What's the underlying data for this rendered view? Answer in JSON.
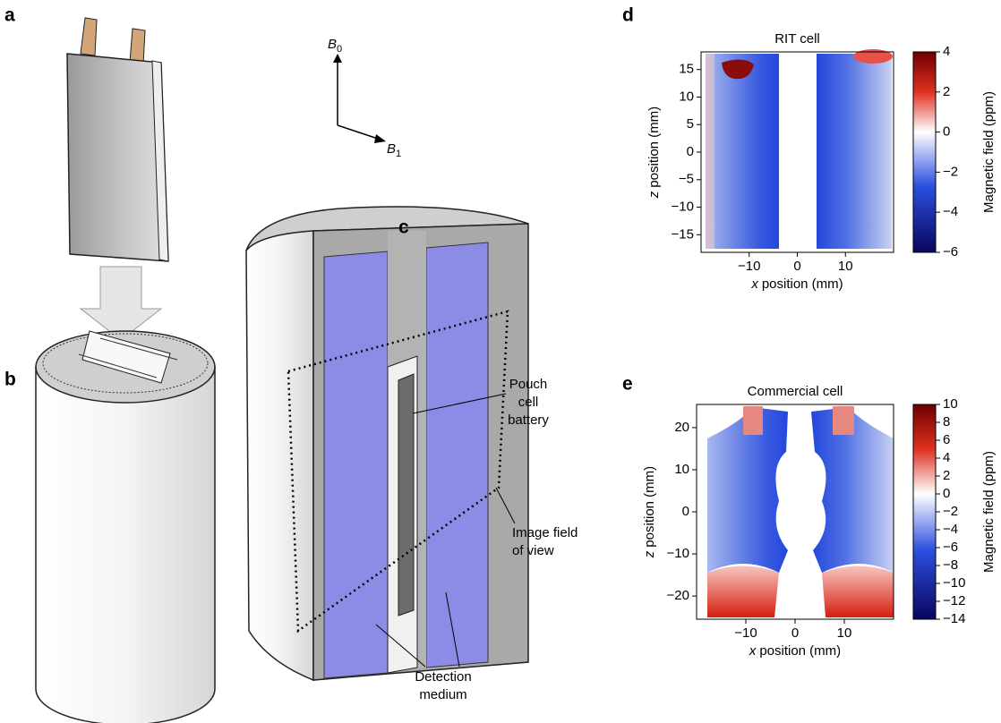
{
  "panel_letters": [
    "a",
    "b",
    "c",
    "d",
    "e"
  ],
  "field_axes": {
    "b0": {
      "symbol": "B",
      "subscript": "0"
    },
    "b1": {
      "symbol": "B",
      "subscript": "1"
    }
  },
  "annotations": {
    "pouch": [
      "Pouch",
      "cell",
      "battery"
    ],
    "field_of_view": [
      "Image field",
      "of view"
    ],
    "medium": [
      "Detection",
      "medium"
    ]
  },
  "chart_data": [
    {
      "type": "heatmap",
      "title": "RIT cell",
      "xlabel_var": "x",
      "xlabel": "position (mm)",
      "ylabel_var": "z",
      "ylabel": "position (mm)",
      "xlim": [
        -20,
        20
      ],
      "xticks": [
        {
          "value": -10,
          "label": "−10"
        },
        0,
        10
      ],
      "ylim": [
        -18.2,
        18.2
      ],
      "yticks": [
        {
          "value": -15,
          "label": "−15"
        },
        {
          "value": -10,
          "label": "−10"
        },
        {
          "value": -5,
          "label": "−5"
        },
        0,
        5,
        10,
        15
      ],
      "colorbar_label": "Magnetic field (ppm)",
      "clim": [
        -6,
        4
      ],
      "cticks": [
        {
          "value": -6,
          "label": "−6"
        },
        {
          "value": -4,
          "label": "−4"
        },
        {
          "value": -2,
          "label": "−2"
        },
        0,
        2,
        4
      ],
      "colormap": [
        "#08065e",
        "#2b4fe0",
        "#ffffff",
        "#e03020",
        "#6e0000"
      ]
    },
    {
      "type": "heatmap",
      "title": "Commercial cell",
      "xlabel_var": "x",
      "xlabel": "position (mm)",
      "ylabel_var": "z",
      "ylabel": "position (mm)",
      "xlim": [
        -20,
        20
      ],
      "xticks": [
        {
          "value": -10,
          "label": "−10"
        },
        0,
        10
      ],
      "ylim": [
        -25.5,
        25.5
      ],
      "yticks": [
        {
          "value": -20,
          "label": "−20"
        },
        {
          "value": -10,
          "label": "−10"
        },
        0,
        10,
        20
      ],
      "colorbar_label": "Magnetic field (ppm)",
      "clim": [
        -14,
        10
      ],
      "cticks": [
        {
          "value": -14,
          "label": "−14"
        },
        {
          "value": -12,
          "label": "−12"
        },
        {
          "value": -10,
          "label": "−10"
        },
        {
          "value": -8,
          "label": "−8"
        },
        {
          "value": -6,
          "label": "−6"
        },
        {
          "value": -4,
          "label": "−4"
        },
        {
          "value": -2,
          "label": "−2"
        },
        0,
        2,
        4,
        6,
        8,
        10
      ],
      "colormap": [
        "#08065e",
        "#2b4fe0",
        "#ffffff",
        "#e03020",
        "#6e0000"
      ]
    }
  ]
}
